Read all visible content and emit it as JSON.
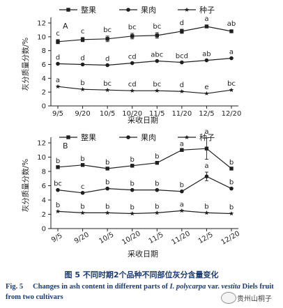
{
  "chart_data": [
    {
      "type": "line",
      "panel_label": "A",
      "ylabel": "灰分质量分数/%",
      "xlabel": "采收日期",
      "ylim": [
        0,
        12
      ],
      "yticks": [
        0,
        2,
        4,
        6,
        8,
        10,
        12
      ],
      "categories": [
        "9/5",
        "9/20",
        "10/5",
        "10/20",
        "11/5",
        "11/20",
        "12/5",
        "12/20"
      ],
      "legend": [
        "整果",
        "果肉",
        "种子"
      ],
      "series": [
        {
          "name": "整果",
          "marker": "square",
          "values": [
            9.3,
            9.6,
            9.7,
            10.1,
            10.2,
            10.8,
            11.5,
            10.8
          ],
          "errors": [
            0.3,
            0.3,
            0.4,
            0.4,
            0.4,
            0.3,
            0.2,
            0.2
          ],
          "sig": [
            "c",
            "c",
            "bc",
            "bc",
            "bc",
            "d",
            "a",
            "ab"
          ]
        },
        {
          "name": "果肉",
          "marker": "circle",
          "values": [
            6.1,
            6.0,
            5.9,
            6.2,
            6.5,
            6.3,
            6.6,
            6.9
          ],
          "errors": [
            0,
            0,
            0,
            0,
            0,
            0,
            0,
            0
          ],
          "sig": [
            "d",
            "d",
            "d",
            "cd",
            "abc",
            "bcd",
            "ab",
            "a"
          ]
        },
        {
          "name": "种子",
          "marker": "star",
          "values": [
            2.8,
            2.4,
            2.3,
            2.2,
            2.2,
            2.1,
            1.8,
            2.3
          ],
          "errors": [
            0,
            0,
            0,
            0,
            0,
            0,
            0,
            0
          ],
          "sig": [
            "a",
            "b",
            "bc",
            "cd",
            "bc",
            "d",
            "e",
            "bc"
          ]
        }
      ]
    },
    {
      "type": "line",
      "panel_label": "B",
      "ylabel": "灰分质量分数/%",
      "xlabel": "采收日期",
      "ylim": [
        0,
        12
      ],
      "yticks": [
        0,
        2,
        4,
        6,
        8,
        10,
        12
      ],
      "categories": [
        "9/5",
        "9/20",
        "10/5",
        "10/20",
        "11/5",
        "11/20",
        "12/5",
        "12/20"
      ],
      "legend": [
        "整果",
        "果肉",
        "种子"
      ],
      "series": [
        {
          "name": "整果",
          "marker": "square",
          "values": [
            8.6,
            8.9,
            8.4,
            8.8,
            9.2,
            11.0,
            11.2,
            8.4
          ],
          "errors": [
            0,
            0,
            0,
            0,
            0,
            0,
            1.5,
            0
          ],
          "sig": [
            "b",
            "b",
            "b",
            "b",
            "b",
            "a",
            "a",
            "b"
          ]
        },
        {
          "name": "果肉",
          "marker": "circle",
          "values": [
            5.4,
            5.0,
            5.6,
            5.4,
            5.4,
            5.2,
            7.3,
            5.6
          ],
          "errors": [
            0,
            0,
            0,
            0,
            0,
            0,
            0.6,
            0
          ],
          "sig": [
            "bc",
            "c",
            "b",
            "b",
            "b",
            "b",
            "a",
            "b"
          ]
        },
        {
          "name": "种子",
          "marker": "star",
          "values": [
            2.4,
            2.2,
            2.2,
            2.1,
            2.2,
            2.5,
            2.2,
            2.1
          ],
          "errors": [
            0,
            0,
            0,
            0,
            0,
            0,
            0,
            0
          ],
          "sig": [
            "b",
            "b",
            "b",
            "b",
            "b",
            "a",
            "b",
            "b"
          ]
        }
      ]
    }
  ],
  "caption": {
    "cn": "图 5    不同时期2个品种不同部位灰分含量变化",
    "en_prefix": "Fig. 5",
    "en_text_1": "Changes in ash content in different parts of ",
    "en_species": "I. polycarpa",
    "en_text_2": " var. ",
    "en_variety": "vestita",
    "en_text_3": " Diels fruit from two cultivars"
  },
  "watermark": "贵州山桐子"
}
